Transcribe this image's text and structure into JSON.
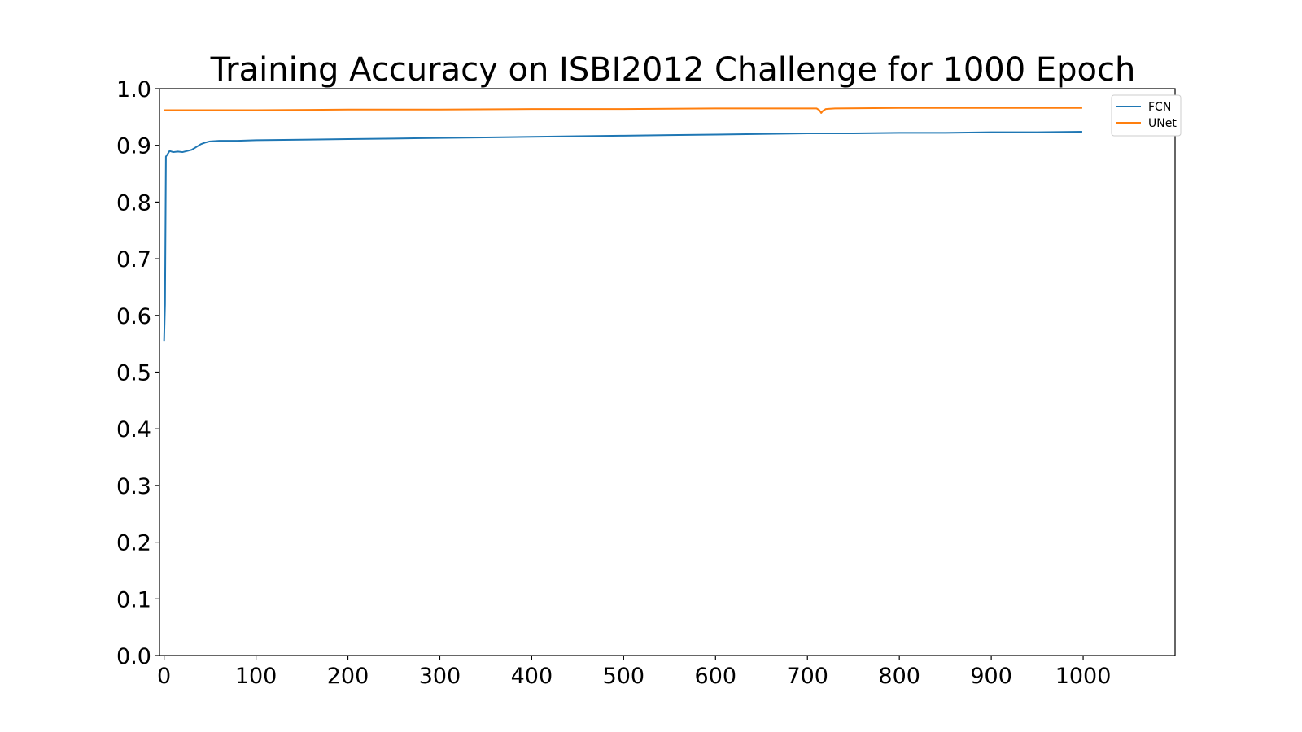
{
  "chart_data": {
    "type": "line",
    "title": "Training Accuracy on ISBI2012 Challenge for 1000 Epoch",
    "xlabel": "",
    "ylabel": "",
    "xlim": [
      -5,
      1100
    ],
    "ylim": [
      0.0,
      1.0
    ],
    "xticks": [
      "0",
      "100",
      "200",
      "300",
      "400",
      "500",
      "600",
      "700",
      "800",
      "900",
      "1000"
    ],
    "yticks": [
      "0.0",
      "0.1",
      "0.2",
      "0.3",
      "0.4",
      "0.5",
      "0.6",
      "0.7",
      "0.8",
      "0.9",
      "1.0"
    ],
    "grid": false,
    "legend_position": "top-right",
    "series": [
      {
        "name": "FCN",
        "color": "#1f77b4",
        "points": [
          [
            0,
            0.555
          ],
          [
            1,
            0.62
          ],
          [
            2,
            0.88
          ],
          [
            4,
            0.885
          ],
          [
            6,
            0.89
          ],
          [
            10,
            0.888
          ],
          [
            15,
            0.889
          ],
          [
            20,
            0.888
          ],
          [
            25,
            0.89
          ],
          [
            30,
            0.892
          ],
          [
            35,
            0.897
          ],
          [
            40,
            0.902
          ],
          [
            45,
            0.905
          ],
          [
            50,
            0.907
          ],
          [
            60,
            0.908
          ],
          [
            80,
            0.908
          ],
          [
            100,
            0.909
          ],
          [
            150,
            0.91
          ],
          [
            200,
            0.911
          ],
          [
            250,
            0.912
          ],
          [
            300,
            0.913
          ],
          [
            350,
            0.914
          ],
          [
            400,
            0.915
          ],
          [
            450,
            0.916
          ],
          [
            500,
            0.917
          ],
          [
            550,
            0.918
          ],
          [
            600,
            0.919
          ],
          [
            650,
            0.92
          ],
          [
            700,
            0.921
          ],
          [
            750,
            0.921
          ],
          [
            800,
            0.922
          ],
          [
            850,
            0.922
          ],
          [
            900,
            0.923
          ],
          [
            950,
            0.923
          ],
          [
            999,
            0.924
          ]
        ]
      },
      {
        "name": "UNet",
        "color": "#ff7f0e",
        "points": [
          [
            0,
            0.962
          ],
          [
            100,
            0.962
          ],
          [
            200,
            0.963
          ],
          [
            300,
            0.963
          ],
          [
            400,
            0.964
          ],
          [
            500,
            0.964
          ],
          [
            600,
            0.965
          ],
          [
            700,
            0.965
          ],
          [
            710,
            0.965
          ],
          [
            713,
            0.962
          ],
          [
            715,
            0.957
          ],
          [
            717,
            0.961
          ],
          [
            720,
            0.964
          ],
          [
            730,
            0.965
          ],
          [
            800,
            0.966
          ],
          [
            900,
            0.966
          ],
          [
            999,
            0.966
          ]
        ]
      }
    ]
  }
}
